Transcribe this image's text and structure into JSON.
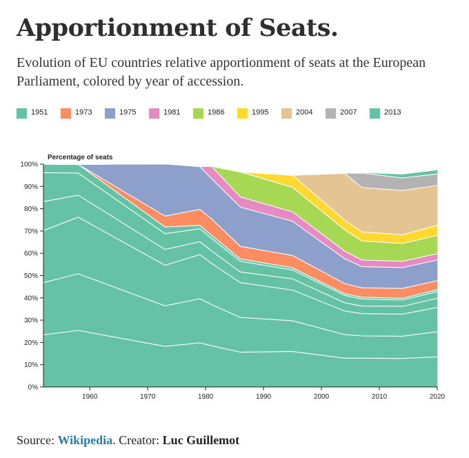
{
  "header": {
    "title": "Apportionment of Seats.",
    "subtitle": "Evolution of EU countries relative apportionment of seats at the European Parliament, colored by year of accession."
  },
  "legend": [
    {
      "label": "1951",
      "color": "#66c2a5"
    },
    {
      "label": "1973",
      "color": "#fc8d62"
    },
    {
      "label": "1975",
      "color": "#8da0cb"
    },
    {
      "label": "1981",
      "color": "#e78ac3"
    },
    {
      "label": "1986",
      "color": "#a6d854"
    },
    {
      "label": "1995",
      "color": "#ffd92f"
    },
    {
      "label": "2004",
      "color": "#e5c494"
    },
    {
      "label": "2007",
      "color": "#b3b3b3"
    },
    {
      "label": "2013",
      "color": "#66c2a5"
    }
  ],
  "footer": {
    "source_prefix": "Source:",
    "source_link": "Wikipedia",
    "creator_prefix": ". Creator:",
    "creator_name": "Luc Guillemot"
  },
  "chart_data": {
    "type": "area",
    "stacked": true,
    "ylabel": "Percentage of seats",
    "xlim": [
      1952,
      2020
    ],
    "ylim": [
      0,
      100
    ],
    "x_ticks": [
      1960,
      1970,
      1980,
      1990,
      2000,
      2010,
      2020
    ],
    "y_ticks": [
      "0%",
      "10%",
      "20%",
      "30%",
      "40%",
      "50%",
      "60%",
      "70%",
      "80%",
      "90%",
      "100%"
    ],
    "grid": false,
    "x": [
      1952,
      1958,
      1973,
      1979,
      1981,
      1986,
      1995,
      2004,
      2007,
      2014,
      2020
    ],
    "series": [
      {
        "group": "1951",
        "values": [
          23.4,
          25.4,
          18.2,
          19.8,
          18.5,
          15.6,
          15.9,
          12.9,
          12.9,
          12.8,
          13.5
        ]
      },
      {
        "group": "1951",
        "values": [
          23.4,
          25.4,
          18.2,
          19.8,
          18.5,
          15.6,
          13.8,
          10.6,
          10.0,
          10.0,
          11.3
        ]
      },
      {
        "group": "1951",
        "values": [
          23.4,
          25.4,
          18.2,
          19.8,
          18.5,
          15.6,
          13.8,
          10.6,
          10.0,
          9.9,
          10.9
        ]
      },
      {
        "group": "1951",
        "values": [
          13.0,
          9.9,
          7.1,
          5.8,
          5.6,
          4.8,
          5.0,
          3.7,
          3.4,
          3.5,
          4.1
        ]
      },
      {
        "group": "1951",
        "values": [
          13.0,
          9.9,
          7.1,
          5.8,
          5.6,
          4.8,
          4.0,
          3.3,
          3.2,
          2.8,
          3.0
        ]
      },
      {
        "group": "1951",
        "values": [
          3.8,
          3.9,
          3.0,
          1.5,
          1.4,
          1.1,
          1.0,
          0.8,
          0.8,
          0.8,
          0.9
        ]
      },
      {
        "group": "1973",
        "values": [
          0,
          0,
          4.9,
          7.2,
          7.4,
          5.6,
          5.5,
          4.5,
          4.2,
          4.4,
          4.0
        ]
      },
      {
        "group": "1975",
        "values": [
          0,
          0,
          23.5,
          19.2,
          18.1,
          17.6,
          15.4,
          11.2,
          9.5,
          9.4,
          9.3
        ]
      },
      {
        "group": "1981",
        "values": [
          0,
          0,
          0,
          0,
          5.5,
          4.6,
          4.2,
          3.4,
          3.0,
          2.8,
          2.8
        ]
      },
      {
        "group": "1986",
        "values": [
          0,
          0,
          0,
          0,
          0,
          11.2,
          11.0,
          9.6,
          8.5,
          8.0,
          8.2
        ]
      },
      {
        "group": "1995",
        "values": [
          0,
          0,
          0,
          0,
          0,
          0,
          5.4,
          4.3,
          4.1,
          3.9,
          4.6
        ]
      },
      {
        "group": "2004",
        "values": [
          0,
          0,
          0,
          0,
          0,
          0,
          0,
          21.0,
          19.9,
          19.9,
          17.8
        ]
      },
      {
        "group": "2007",
        "values": [
          0,
          0,
          0,
          0,
          0,
          0,
          0,
          0,
          6.5,
          5.6,
          5.2
        ]
      },
      {
        "group": "2013",
        "values": [
          0,
          0,
          0,
          0,
          0,
          0,
          0,
          0,
          0,
          1.5,
          1.6
        ]
      }
    ]
  }
}
